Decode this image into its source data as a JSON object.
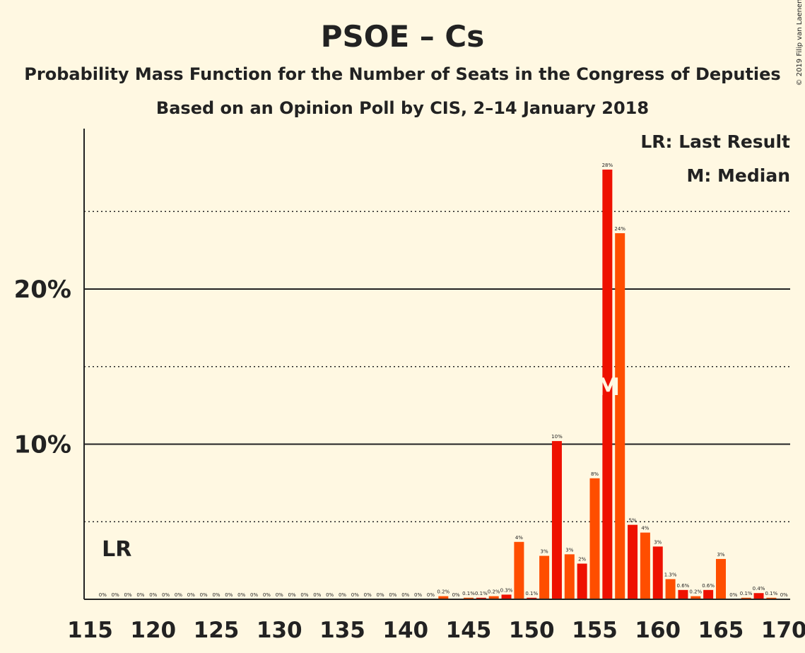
{
  "copyright": "© 2019 Filip van Laenen",
  "colors": {
    "primary": "#EE1100",
    "secondary": "#FF4E00",
    "background": "#FFF8E2",
    "text": "#222222"
  },
  "chart_data": {
    "type": "bar",
    "title": "PSOE – Cs",
    "subtitle": "Probability Mass Function for the Number of Seats in the Congress of Deputies",
    "subtitle2": "Based on an Opinion Poll by CIS, 2–14 January 2018",
    "xlabel": "",
    "ylabel": "",
    "xlim": [
      115,
      170
    ],
    "ylim": [
      0,
      30
    ],
    "x_ticks": [
      "115",
      "120",
      "125",
      "130",
      "135",
      "140",
      "145",
      "150",
      "155",
      "160",
      "165",
      "170"
    ],
    "y_ticks": [
      "10%",
      "20%"
    ],
    "legend": {
      "last_result": "LR: Last Result",
      "median": "M: Median"
    },
    "markers": {
      "last_result_label": "LR",
      "last_result_seat": 117,
      "median_label": "M",
      "median_seat": 156
    },
    "seats": [
      116,
      117,
      118,
      119,
      120,
      121,
      122,
      123,
      124,
      125,
      126,
      127,
      128,
      129,
      130,
      131,
      132,
      133,
      134,
      135,
      136,
      137,
      138,
      139,
      140,
      141,
      142,
      143,
      144,
      145,
      146,
      147,
      148,
      149,
      150,
      151,
      152,
      153,
      154,
      155,
      156,
      157,
      158,
      159,
      160,
      161,
      162,
      163,
      164,
      165,
      166,
      167,
      168,
      169
    ],
    "values": [
      0,
      0,
      0,
      0,
      0,
      0,
      0,
      0,
      0,
      0,
      0,
      0,
      0,
      0,
      0,
      0,
      0,
      0,
      0,
      0,
      0,
      0,
      0,
      0,
      0,
      0,
      0,
      0.2,
      0,
      0.1,
      0.1,
      0.2,
      0.3,
      3.7,
      0.1,
      2.8,
      10.2,
      2.9,
      2.3,
      7.8,
      27.7,
      23.6,
      4.8,
      4.3,
      3.4,
      1.3,
      0.6,
      0.2,
      0.6,
      2.6,
      0,
      0.1,
      0.4,
      0.1
    ],
    "labels": [
      "0%",
      "0%",
      "0%",
      "0%",
      "0%",
      "0%",
      "0%",
      "0%",
      "0%",
      "0%",
      "0%",
      "0%",
      "0%",
      "0%",
      "0%",
      "0%",
      "0%",
      "0%",
      "0%",
      "0%",
      "0%",
      "0%",
      "0%",
      "0%",
      "0%",
      "0%",
      "0%",
      "0.2%",
      "0%",
      "0.1%",
      "0.1%",
      "0.2%",
      "0.3%",
      "4%",
      "0.1%",
      "3%",
      "10%",
      "3%",
      "2%",
      "8%",
      "28%",
      "24%",
      "5%",
      "4%",
      "3%",
      "1.3%",
      "0.6%",
      "0.2%",
      "0.6%",
      "3%",
      "0%",
      "0.1%",
      "0.4%",
      "0.1%"
    ],
    "end_label": "0%",
    "grid": true
  }
}
